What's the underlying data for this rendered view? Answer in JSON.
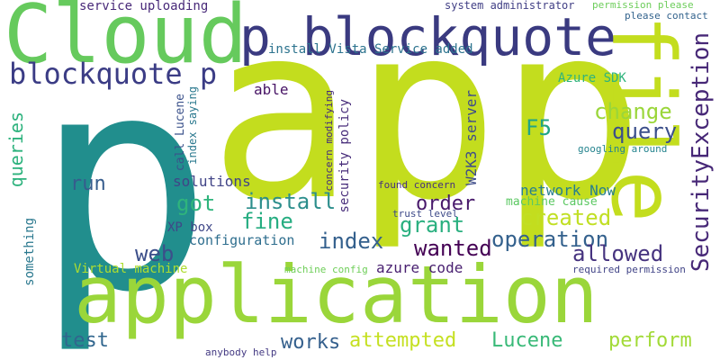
{
  "words": [
    {
      "text": "p",
      "color": "#218e8d"
    },
    {
      "text": "app",
      "color": "#c3dd1e"
    },
    {
      "text": "application",
      "color": "#9ad63a"
    },
    {
      "text": "Cloud",
      "color": "#66ca5d"
    },
    {
      "text": "p blockquote",
      "color": "#3a3a80"
    },
    {
      "text": "file",
      "color": "#c3dd1e"
    },
    {
      "text": "blockquote p",
      "color": "#3b3c85"
    },
    {
      "text": "SecurityException",
      "color": "#472877"
    },
    {
      "text": "change",
      "color": "#9ad63a"
    },
    {
      "text": "query",
      "color": "#3b4f8a"
    },
    {
      "text": "F5",
      "color": "#21a585"
    },
    {
      "text": "queries",
      "color": "#2db27d"
    },
    {
      "text": "run",
      "color": "#365c8d"
    },
    {
      "text": "install",
      "color": "#2c8e8c"
    },
    {
      "text": "got",
      "color": "#2fb47c"
    },
    {
      "text": "fine",
      "color": "#26ad81"
    },
    {
      "text": "order",
      "color": "#48196b"
    },
    {
      "text": "index",
      "color": "#34608d"
    },
    {
      "text": "grant",
      "color": "#29af7f"
    },
    {
      "text": "created",
      "color": "#c1df24"
    },
    {
      "text": "operation",
      "color": "#34618d"
    },
    {
      "text": "wanted",
      "color": "#440154"
    },
    {
      "text": "web",
      "color": "#3c4f8a"
    },
    {
      "text": "allowed",
      "color": "#46337f"
    },
    {
      "text": "test",
      "color": "#31668e"
    },
    {
      "text": "works",
      "color": "#35608d"
    },
    {
      "text": "attempted",
      "color": "#c5e022"
    },
    {
      "text": "Lucene",
      "color": "#38b977"
    },
    {
      "text": "perform",
      "color": "#a2da37"
    },
    {
      "text": "azure code",
      "color": "#481f70"
    },
    {
      "text": "network Now",
      "color": "#277f8e"
    },
    {
      "text": "configuration",
      "color": "#2e6e8e"
    },
    {
      "text": "solutions",
      "color": "#414487"
    },
    {
      "text": "able",
      "color": "#471365"
    },
    {
      "text": "install Vista Service added",
      "color": "#2c738e"
    },
    {
      "text": "Azure SDK",
      "color": "#2fb47c"
    },
    {
      "text": "service uploading",
      "color": "#482979"
    },
    {
      "text": "system administrator",
      "color": "#424086"
    },
    {
      "text": "permission please",
      "color": "#6ccd5a"
    },
    {
      "text": "please contact",
      "color": "#33638d"
    },
    {
      "text": "W2K3 server",
      "color": "#3e4c8a"
    },
    {
      "text": "security policy",
      "color": "#472c7a"
    },
    {
      "text": "concern modifying",
      "color": "#472e7c"
    },
    {
      "text": "call Lucene",
      "color": "#3b528b"
    },
    {
      "text": "index saying",
      "color": "#2a788e"
    },
    {
      "text": "googling around",
      "color": "#25848e"
    },
    {
      "text": "found concern",
      "color": "#46307e"
    },
    {
      "text": "machine cause",
      "color": "#5cc863"
    },
    {
      "text": "trust level",
      "color": "#3e4a89"
    },
    {
      "text": "XP box",
      "color": "#3f4788"
    },
    {
      "text": "something",
      "color": "#2a788e"
    },
    {
      "text": "Virtual machine",
      "color": "#addc30"
    },
    {
      "text": "machine config",
      "color": "#6ece58"
    },
    {
      "text": "required permission",
      "color": "#414487"
    },
    {
      "text": "anybody help",
      "color": "#443a83"
    }
  ]
}
